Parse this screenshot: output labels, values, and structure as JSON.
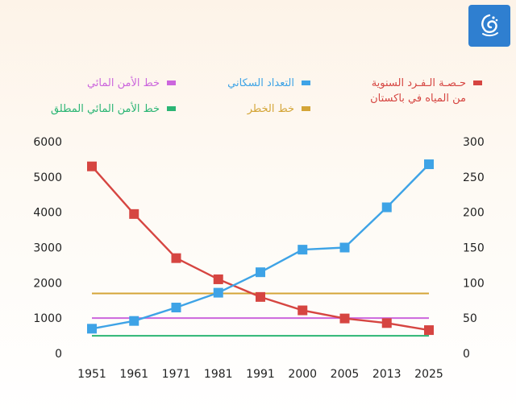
{
  "brand": {
    "logo_icon": "al-jazeera-logo-icon",
    "logo_color": "#2f7fd0"
  },
  "legend": [
    {
      "key": "per_capita",
      "label_lines": [
        "حـصـة الـفـرد السنوية",
        "من المياه في باكستان"
      ],
      "color": "#d64541"
    },
    {
      "key": "population",
      "label_lines": [
        "التعداد السكاني"
      ],
      "color": "#3ea3e6"
    },
    {
      "key": "security",
      "label_lines": [
        "خط الأمن المائي"
      ],
      "color": "#cc66dd"
    },
    {
      "key": "danger",
      "label_lines": [
        "خط الخطر"
      ],
      "color": "#d4a537"
    },
    {
      "key": "absolute",
      "label_lines": [
        "خط الأمن المائي المطلق"
      ],
      "color": "#2bb574"
    }
  ],
  "chart_data": {
    "type": "line",
    "categories": [
      "1951",
      "1961",
      "1971",
      "1981",
      "1991",
      "2000",
      "2005",
      "2013",
      "2025"
    ],
    "y_left": {
      "min": 0,
      "max": 6000,
      "ticks": [
        "0",
        "1000",
        "2000",
        "3000",
        "4000",
        "5000",
        "6000"
      ]
    },
    "y_right": {
      "min": 0,
      "max": 300,
      "ticks": [
        "0",
        "50",
        "100",
        "150",
        "200",
        "250",
        "300"
      ]
    },
    "grid": false,
    "legend_position": "top",
    "series": [
      {
        "key": "per_capita",
        "axis": "left",
        "color": "#d64541",
        "marker": "square",
        "values": [
          5300,
          3950,
          2700,
          2100,
          1600,
          1220,
          990,
          860,
          660
        ]
      },
      {
        "key": "population",
        "axis": "right",
        "color": "#3ea3e6",
        "marker": "square",
        "values": [
          35,
          46,
          65,
          86,
          115,
          147,
          150,
          207,
          268
        ]
      },
      {
        "key": "security",
        "axis": "left",
        "color": "#cc66dd",
        "constant": 1000
      },
      {
        "key": "danger",
        "axis": "left",
        "color": "#d4a537",
        "constant": 1700
      },
      {
        "key": "absolute",
        "axis": "left",
        "color": "#2bb574",
        "constant": 500
      }
    ]
  }
}
